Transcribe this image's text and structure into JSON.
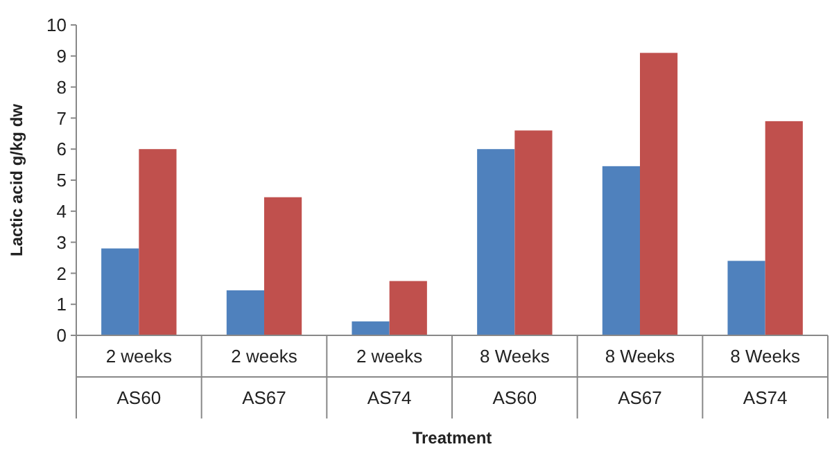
{
  "chart_data": {
    "type": "bar",
    "xlabel": "Treatment",
    "ylabel": "Lactic acid g/kg dw",
    "categories": [
      "2 weeks\nAS60",
      "2 weeks\nAS67",
      "2 weeks\nAS74",
      "8 Weeks\nAS60",
      "8 Weeks\nAS67",
      "8 Weeks\nAS74"
    ],
    "series": [
      {
        "color": "#4f81bd",
        "values": [
          2.8,
          1.45,
          0.45,
          6.0,
          5.45,
          2.4
        ]
      },
      {
        "color": "#c0504d",
        "values": [
          6.0,
          4.45,
          1.75,
          6.6,
          9.1,
          6.9
        ]
      }
    ],
    "ylim": [
      0,
      10
    ],
    "yticks": [
      0,
      1,
      2,
      3,
      4,
      5,
      6,
      7,
      8,
      9,
      10
    ],
    "grid": false
  }
}
